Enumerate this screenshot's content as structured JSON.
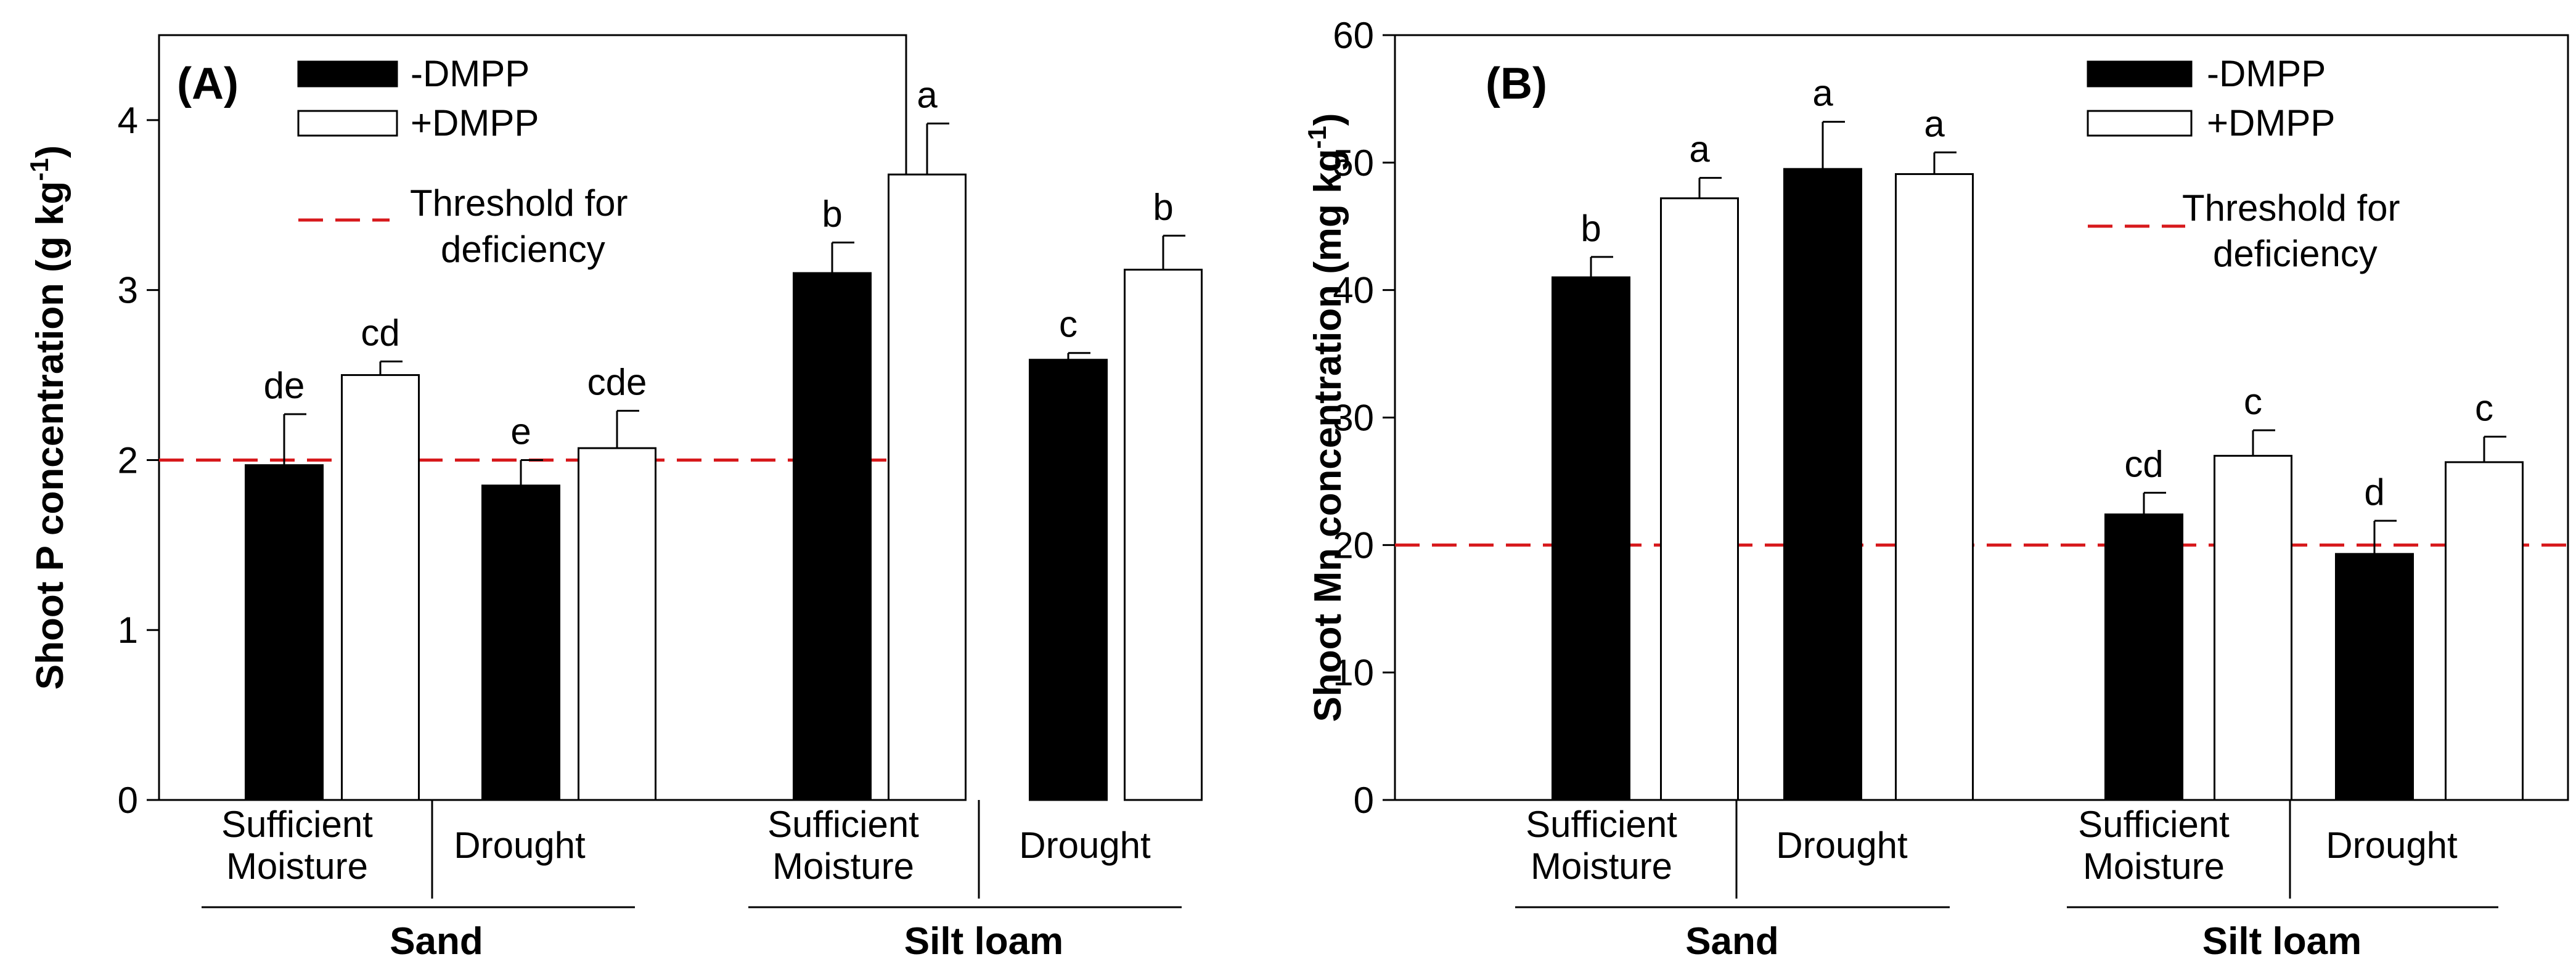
{
  "legend": {
    "neg": "-DMPP",
    "pos": "+DMPP",
    "threshold_line1": "Threshold for",
    "threshold_line2": "deficiency"
  },
  "colors": {
    "neg_fill": "#000000",
    "pos_fill": "#ffffff",
    "threshold": "#d7191c",
    "axis": "#000000"
  },
  "chart_data": [
    {
      "type": "bar",
      "panel_label": "(A)",
      "ylabel_main": "Shoot P concentration (g kg",
      "ylabel_exp": "-1",
      "ylabel_close": ")",
      "ylim": [
        0,
        4.5
      ],
      "yticks": [
        0,
        1,
        2,
        3,
        4
      ],
      "threshold": 2.0,
      "soils": [
        "Sand",
        "Silt loam"
      ],
      "moisture": [
        [
          "Sufficient",
          "Moisture"
        ],
        [
          "Drought"
        ]
      ],
      "series": [
        {
          "name": "-DMPP",
          "values": [
            1.97,
            1.85,
            3.1,
            2.59
          ],
          "errors": [
            0.3,
            0.15,
            0.18,
            0.04
          ],
          "letters": [
            "de",
            "e",
            "b",
            "c"
          ]
        },
        {
          "name": "+DMPP",
          "values": [
            2.5,
            2.07,
            3.68,
            3.12
          ],
          "errors": [
            0.08,
            0.22,
            0.3,
            0.2
          ],
          "letters": [
            "cd",
            "cde",
            "a",
            "b"
          ]
        }
      ]
    },
    {
      "type": "bar",
      "panel_label": "(B)",
      "ylabel_main": "Shoot Mn concentration (mg kg",
      "ylabel_exp": "-1",
      "ylabel_close": ")",
      "ylim": [
        0,
        60
      ],
      "yticks": [
        0,
        10,
        20,
        30,
        40,
        50,
        60
      ],
      "threshold": 20,
      "soils": [
        "Sand",
        "Silt loam"
      ],
      "moisture": [
        [
          "Sufficient",
          "Moisture"
        ],
        [
          "Drought"
        ]
      ],
      "series": [
        {
          "name": "-DMPP",
          "values": [
            41,
            49.5,
            22.4,
            19.3
          ],
          "errors": [
            1.6,
            3.7,
            1.7,
            2.6
          ],
          "letters": [
            "b",
            "a",
            "cd",
            "d"
          ]
        },
        {
          "name": "+DMPP",
          "values": [
            47.2,
            49.1,
            27,
            26.5
          ],
          "errors": [
            1.6,
            1.7,
            2.0,
            2.0
          ],
          "letters": [
            "a",
            "a",
            "c",
            "c"
          ]
        }
      ]
    }
  ]
}
